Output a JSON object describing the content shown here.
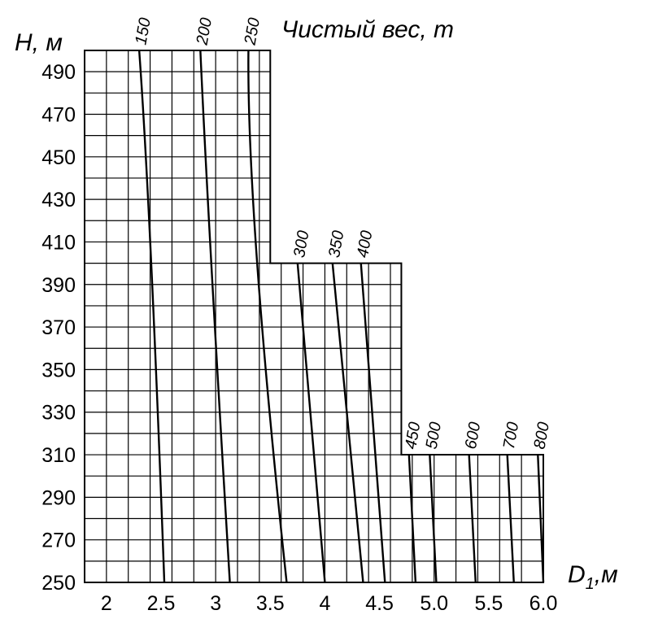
{
  "chart_data": {
    "type": "line",
    "title": "Чистый вес, т",
    "xlabel": "D",
    "xlabel_sub": "1",
    "xlabel_unit": ",м",
    "ylabel": "H, м",
    "xlim": [
      1.8,
      6.0
    ],
    "ylim": [
      250,
      500
    ],
    "x_tick_labels": [
      "2",
      "2.5",
      "3",
      "3.5",
      "4",
      "4.5",
      "5.0",
      "5.5",
      "6.0"
    ],
    "x_tick_values": [
      2,
      2.5,
      3,
      3.5,
      4,
      4.5,
      5.0,
      5.5,
      6.0
    ],
    "y_tick_labels": [
      "250",
      "270",
      "290",
      "310",
      "330",
      "350",
      "370",
      "390",
      "410",
      "430",
      "450",
      "470",
      "490"
    ],
    "y_tick_values": [
      250,
      270,
      290,
      310,
      330,
      350,
      370,
      390,
      410,
      430,
      450,
      470,
      490
    ],
    "grid": true,
    "grid_step_x": 0.2,
    "grid_step_y": 10,
    "region_upper_bounds": [
      {
        "x_from": 1.8,
        "x_to": 3.5,
        "h_max": 500
      },
      {
        "x_from": 3.5,
        "x_to": 4.7,
        "h_max": 400
      },
      {
        "x_from": 4.7,
        "x_to": 6.0,
        "h_max": 310
      }
    ],
    "series": [
      {
        "name": "150",
        "points": [
          [
            2.3,
            500
          ],
          [
            2.41,
            400
          ],
          [
            2.53,
            250
          ]
        ]
      },
      {
        "name": "200",
        "points": [
          [
            2.86,
            500
          ],
          [
            2.96,
            400
          ],
          [
            3.13,
            250
          ]
        ]
      },
      {
        "name": "250",
        "points": [
          [
            3.3,
            500
          ],
          [
            3.38,
            400
          ],
          [
            3.65,
            250
          ]
        ]
      },
      {
        "name": "300",
        "points": [
          [
            3.75,
            400
          ],
          [
            4.0,
            250
          ]
        ]
      },
      {
        "name": "350",
        "points": [
          [
            4.07,
            400
          ],
          [
            4.35,
            250
          ]
        ]
      },
      {
        "name": "400",
        "points": [
          [
            4.33,
            400
          ],
          [
            4.55,
            250
          ]
        ]
      },
      {
        "name": "450",
        "points": [
          [
            4.77,
            310
          ],
          [
            4.83,
            250
          ]
        ]
      },
      {
        "name": "500",
        "points": [
          [
            4.96,
            310
          ],
          [
            5.02,
            250
          ]
        ]
      },
      {
        "name": "600",
        "points": [
          [
            5.32,
            310
          ],
          [
            5.38,
            250
          ]
        ]
      },
      {
        "name": "700",
        "points": [
          [
            5.67,
            310
          ],
          [
            5.73,
            250
          ]
        ]
      },
      {
        "name": "800",
        "points": [
          [
            5.95,
            310
          ],
          [
            6.0,
            250
          ]
        ]
      }
    ]
  }
}
